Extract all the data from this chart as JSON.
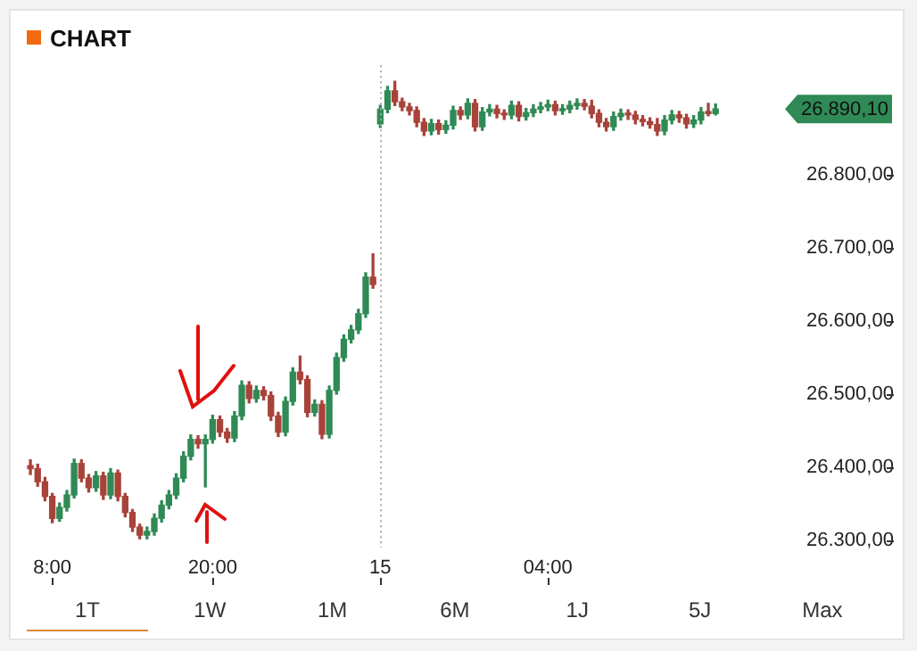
{
  "chart_data": {
    "type": "candlestick",
    "title": "CHART",
    "categories": [
      null,
      null,
      null,
      "8:00",
      null,
      null,
      null,
      null,
      null,
      null,
      null,
      null,
      null,
      null,
      null,
      null,
      null,
      null,
      null,
      null,
      null,
      null,
      null,
      null,
      null,
      "20:00",
      null,
      null,
      null,
      null,
      null,
      null,
      null,
      null,
      null,
      null,
      null,
      null,
      null,
      null,
      null,
      null,
      null,
      null,
      null,
      null,
      null,
      null,
      "15",
      null,
      null,
      null,
      null,
      null,
      null,
      null,
      null,
      null,
      null,
      null,
      null,
      null,
      null,
      null,
      null,
      null,
      null,
      null,
      null,
      null,
      null,
      "04:00",
      null,
      null,
      null,
      null,
      null,
      null,
      null,
      null,
      null,
      null,
      null,
      null,
      null,
      null,
      null,
      null,
      null,
      null,
      null,
      null,
      null,
      null,
      null,
      null,
      null,
      null,
      null,
      null,
      null,
      null,
      null,
      null,
      null
    ],
    "ohlc": [
      [
        26402,
        26410,
        26390,
        26398
      ],
      [
        26398,
        26404,
        26374,
        26380
      ],
      [
        26380,
        26386,
        26354,
        26360
      ],
      [
        26360,
        26364,
        26324,
        26330
      ],
      [
        26330,
        26351,
        26326,
        26345
      ],
      [
        26345,
        26368,
        26340,
        26362
      ],
      [
        26362,
        26411,
        26358,
        26405
      ],
      [
        26405,
        26410,
        26380,
        26385
      ],
      [
        26385,
        26390,
        26366,
        26372
      ],
      [
        26372,
        26394,
        26367,
        26388
      ],
      [
        26388,
        26393,
        26356,
        26362
      ],
      [
        26362,
        26398,
        26357,
        26392
      ],
      [
        26392,
        26396,
        26354,
        26360
      ],
      [
        26360,
        26364,
        26332,
        26338
      ],
      [
        26338,
        26342,
        26312,
        26318
      ],
      [
        26318,
        26322,
        26302,
        26307
      ],
      [
        26307,
        26318,
        26302,
        26312
      ],
      [
        26312,
        26336,
        26307,
        26330
      ],
      [
        26330,
        26354,
        26325,
        26348
      ],
      [
        26348,
        26368,
        26343,
        26362
      ],
      [
        26362,
        26391,
        26357,
        26385
      ],
      [
        26385,
        26421,
        26380,
        26415
      ],
      [
        26415,
        26444,
        26410,
        26438
      ],
      [
        26438,
        26443,
        26426,
        26432
      ],
      [
        26432,
        26444,
        26373,
        26438
      ],
      [
        26438,
        26471,
        26433,
        26465
      ],
      [
        26465,
        26470,
        26442,
        26448
      ],
      [
        26448,
        26453,
        26434,
        26440
      ],
      [
        26440,
        26476,
        26435,
        26470
      ],
      [
        26470,
        26518,
        26465,
        26512
      ],
      [
        26512,
        26517,
        26488,
        26494
      ],
      [
        26494,
        26511,
        26489,
        26505
      ],
      [
        26505,
        26510,
        26492,
        26498
      ],
      [
        26498,
        26503,
        26464,
        26470
      ],
      [
        26470,
        26475,
        26442,
        26448
      ],
      [
        26448,
        26496,
        26443,
        26490
      ],
      [
        26490,
        26536,
        26485,
        26530
      ],
      [
        26530,
        26552,
        26514,
        26520
      ],
      [
        26520,
        26525,
        26469,
        26475
      ],
      [
        26475,
        26492,
        26470,
        26486
      ],
      [
        26486,
        26491,
        26439,
        26445
      ],
      [
        26445,
        26511,
        26440,
        26505
      ],
      [
        26505,
        26556,
        26500,
        26550
      ],
      [
        26550,
        26581,
        26545,
        26575
      ],
      [
        26575,
        26594,
        26570,
        26588
      ],
      [
        26588,
        26616,
        26583,
        26610
      ],
      [
        26610,
        26666,
        26605,
        26660
      ],
      [
        26660,
        26692,
        26645,
        26650
      ],
      [
        26870,
        26895,
        26865,
        26890
      ],
      [
        26890,
        26921,
        26885,
        26915
      ],
      [
        26915,
        26928,
        26895,
        26900
      ],
      [
        26900,
        26905,
        26888,
        26893
      ],
      [
        26893,
        26898,
        26882,
        26888
      ],
      [
        26888,
        26893,
        26866,
        26872
      ],
      [
        26872,
        26877,
        26854,
        26860
      ],
      [
        26860,
        26876,
        26855,
        26870
      ],
      [
        26870,
        26875,
        26856,
        26862
      ],
      [
        26862,
        26874,
        26857,
        26868
      ],
      [
        26868,
        26894,
        26863,
        26888
      ],
      [
        26888,
        26893,
        26876,
        26882
      ],
      [
        26882,
        26904,
        26877,
        26898
      ],
      [
        26898,
        26903,
        26860,
        26866
      ],
      [
        26866,
        26892,
        26861,
        26886
      ],
      [
        26886,
        26896,
        26881,
        26890
      ],
      [
        26890,
        26895,
        26878,
        26884
      ],
      [
        26884,
        26889,
        26876,
        26882
      ],
      [
        26882,
        26901,
        26877,
        26895
      ],
      [
        26895,
        26900,
        26874,
        26880
      ],
      [
        26880,
        26891,
        26875,
        26885
      ],
      [
        26885,
        26896,
        26880,
        26890
      ],
      [
        26890,
        26899,
        26885,
        26893
      ],
      [
        26893,
        26902,
        26888,
        26896
      ],
      [
        26896,
        26901,
        26882,
        26888
      ],
      [
        26888,
        26896,
        26883,
        26890
      ],
      [
        26890,
        26901,
        26885,
        26895
      ],
      [
        26895,
        26904,
        26890,
        26898
      ],
      [
        26898,
        26903,
        26889,
        26894
      ],
      [
        26894,
        26902,
        26878,
        26884
      ],
      [
        26884,
        26889,
        26866,
        26872
      ],
      [
        26872,
        26877,
        26860,
        26866
      ],
      [
        26866,
        26886,
        26861,
        26880
      ],
      [
        26880,
        26890,
        26875,
        26884
      ],
      [
        26884,
        26889,
        26876,
        26882
      ],
      [
        26882,
        26887,
        26870,
        26876
      ],
      [
        26876,
        26881,
        26867,
        26873
      ],
      [
        26873,
        26878,
        26864,
        26869
      ],
      [
        26869,
        26877,
        26854,
        26860
      ],
      [
        26860,
        26881,
        26855,
        26875
      ],
      [
        26875,
        26888,
        26870,
        26882
      ],
      [
        26882,
        26887,
        26872,
        26878
      ],
      [
        26878,
        26883,
        26864,
        26870
      ],
      [
        26870,
        26881,
        26865,
        26875
      ],
      [
        26875,
        26892,
        26870,
        26886
      ],
      [
        26886,
        26898,
        26881,
        26884
      ],
      [
        26884,
        26897,
        26882,
        26890.1
      ],
      null,
      null,
      null,
      null,
      null,
      null,
      null,
      null,
      null,
      null
    ],
    "colors": [
      "#a8433a",
      "#a8433a",
      "#a8433a",
      "#a8433a",
      "#2f8a55",
      "#2f8a55",
      "#2f8a55",
      "#a8433a",
      "#a8433a",
      "#2f8a55",
      "#a8433a",
      "#2f8a55",
      "#a8433a",
      "#a8433a",
      "#a8433a",
      "#a8433a",
      "#2f8a55",
      "#2f8a55",
      "#2f8a55",
      "#2f8a55",
      "#2f8a55",
      "#2f8a55",
      "#2f8a55",
      "#a8433a",
      "#2f8a55",
      "#2f8a55",
      "#a8433a",
      "#a8433a",
      "#2f8a55",
      "#2f8a55",
      "#a8433a",
      "#2f8a55",
      "#a8433a",
      "#a8433a",
      "#a8433a",
      "#2f8a55",
      "#2f8a55",
      "#a8433a",
      "#a8433a",
      "#2f8a55",
      "#a8433a",
      "#2f8a55",
      "#2f8a55",
      "#2f8a55",
      "#2f8a55",
      "#2f8a55",
      "#2f8a55",
      "#a8433a",
      "#2f8a55",
      "#2f8a55",
      "#a8433a",
      "#a8433a",
      "#a8433a",
      "#a8433a",
      "#a8433a",
      "#2f8a55",
      "#a8433a",
      "#2f8a55",
      "#2f8a55",
      "#a8433a",
      "#2f8a55",
      "#a8433a",
      "#2f8a55",
      "#2f8a55",
      "#a8433a",
      "#a8433a",
      "#2f8a55",
      "#a8433a",
      "#2f8a55",
      "#2f8a55",
      "#2f8a55",
      "#2f8a55",
      "#a8433a",
      "#2f8a55",
      "#2f8a55",
      "#2f8a55",
      "#a8433a",
      "#a8433a",
      "#a8433a",
      "#a8433a",
      "#2f8a55",
      "#2f8a55",
      "#a8433a",
      "#a8433a",
      "#a8433a",
      "#a8433a",
      "#a8433a",
      "#2f8a55",
      "#2f8a55",
      "#a8433a",
      "#a8433a",
      "#2f8a55",
      "#2f8a55",
      "#a8433a",
      "#2f8a55",
      null,
      null,
      null,
      null,
      null,
      null,
      null,
      null,
      null,
      null
    ],
    "ylim": [
      26290,
      26950
    ],
    "yticks": [
      {
        "value": 26300,
        "label": "26.300,00"
      },
      {
        "value": 26400,
        "label": "26.400,00"
      },
      {
        "value": 26500,
        "label": "26.500,00"
      },
      {
        "value": 26600,
        "label": "26.600,00"
      },
      {
        "value": 26700,
        "label": "26.700,00"
      },
      {
        "value": 26800,
        "label": "26.800,00"
      }
    ],
    "ref_lines": [
      {
        "axis": "x",
        "value": "15",
        "line_style": "dotted",
        "color": "#aaaaaa"
      }
    ],
    "annotations": [
      "26.890,10",
      "1T",
      "1W",
      "1M",
      "6M",
      "1J",
      "5J",
      "Max"
    ],
    "legend": false,
    "grid": false
  }
}
